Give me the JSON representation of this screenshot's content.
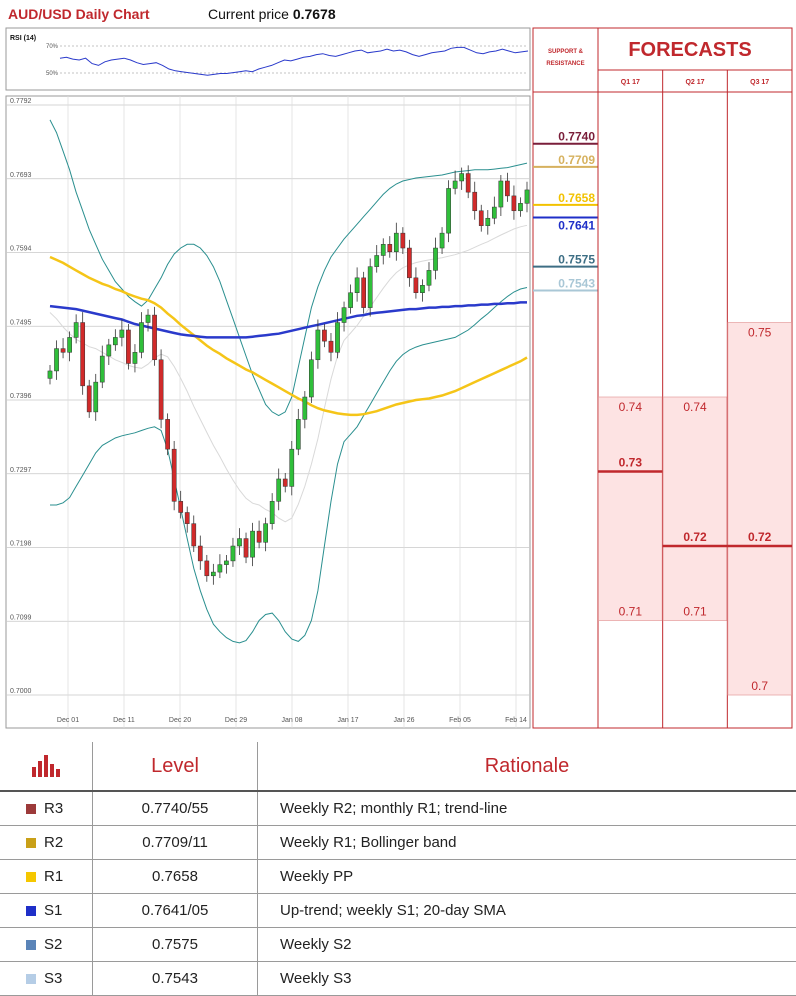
{
  "header": {
    "title": "AUD/USD Daily Chart",
    "price_prefix": "Current price",
    "price_value": "0.7678"
  },
  "rsi": {
    "label": "RSI (14)",
    "ticks": [
      "70%",
      "50%"
    ]
  },
  "support_header": "SUPPORT & RESISTANCE",
  "forecasts": {
    "title": "FORECASTS",
    "columns": [
      "Q1 17",
      "Q2 17",
      "Q3 17"
    ],
    "data": [
      {
        "quarter": "Q1 17",
        "high": 0.74,
        "mid": 0.73,
        "low": 0.71,
        "labels": [
          "0.74",
          "0.73",
          "0.71"
        ]
      },
      {
        "quarter": "Q2 17",
        "high": 0.74,
        "mid": 0.72,
        "low": 0.71,
        "labels": [
          "0.74",
          "0.72",
          "0.71"
        ]
      },
      {
        "quarter": "Q3 17",
        "high": 0.75,
        "mid": 0.72,
        "low": 0.7,
        "labels": [
          "0.75",
          "0.72",
          "0.7"
        ]
      }
    ]
  },
  "colors": {
    "brand_red": "#c0282d",
    "r3": "#7a1e3a",
    "r2": "#d6b15e",
    "r1": "#f2c200",
    "s1": "#1f2fc8",
    "s2": "#3d6e84",
    "s3": "#a9c7d6",
    "candle_up": "#2fbf3a",
    "candle_down": "#d12a2a",
    "bollinger": "#2a8f8f",
    "sma200": "#2a3acb",
    "sma100": "#f5c518",
    "forecast_fill": "#fde3e3"
  },
  "chart_data": {
    "type": "candlestick",
    "y_ticks": [
      "0.7792",
      "0.7693",
      "0.7594",
      "0.7495",
      "0.7396",
      "0.7297",
      "0.7198",
      "0.7099",
      "0.7000"
    ],
    "ylim": [
      0.7,
      0.7792
    ],
    "x_ticks": [
      "Dec 01",
      "Dec 11",
      "Dec 20",
      "Dec 29",
      "Jan 08",
      "Jan 17",
      "Jan 26",
      "Feb 05",
      "Feb 14"
    ],
    "levels": [
      {
        "name": "R3",
        "value": 0.774,
        "label": "0.7740",
        "color": "#7a1e3a"
      },
      {
        "name": "R2",
        "value": 0.7709,
        "label": "0.7709",
        "color": "#d6b15e"
      },
      {
        "name": "R1",
        "value": 0.7658,
        "label": "0.7658",
        "color": "#f2c200"
      },
      {
        "name": "S1",
        "value": 0.7641,
        "label": "0.7641",
        "color": "#1f2fc8"
      },
      {
        "name": "S2",
        "value": 0.7575,
        "label": "0.7575",
        "color": "#3d6e84"
      },
      {
        "name": "S3",
        "value": 0.7543,
        "label": "0.7543",
        "color": "#a9c7d6"
      }
    ],
    "close": [
      0.7435,
      0.7465,
      0.746,
      0.748,
      0.75,
      0.7415,
      0.738,
      0.742,
      0.7455,
      0.747,
      0.748,
      0.749,
      0.7445,
      0.746,
      0.75,
      0.751,
      0.745,
      0.737,
      0.733,
      0.726,
      0.7245,
      0.723,
      0.72,
      0.718,
      0.716,
      0.7165,
      0.7175,
      0.718,
      0.72,
      0.721,
      0.7185,
      0.722,
      0.7205,
      0.723,
      0.726,
      0.729,
      0.728,
      0.733,
      0.737,
      0.74,
      0.745,
      0.749,
      0.7475,
      0.746,
      0.75,
      0.752,
      0.754,
      0.756,
      0.752,
      0.7575,
      0.759,
      0.7605,
      0.7595,
      0.762,
      0.76,
      0.756,
      0.754,
      0.755,
      0.757,
      0.76,
      0.762,
      0.768,
      0.769,
      0.77,
      0.7675,
      0.765,
      0.763,
      0.764,
      0.7655,
      0.769,
      0.767,
      0.765,
      0.766,
      0.7678
    ],
    "sma200": [
      0.7522,
      0.7521,
      0.752,
      0.7519,
      0.7518,
      0.7516,
      0.7514,
      0.7512,
      0.751,
      0.7508,
      0.7506,
      0.7504,
      0.7501,
      0.7498,
      0.7496,
      0.7494,
      0.7492,
      0.749,
      0.7488,
      0.7486,
      0.7484,
      0.7483,
      0.7482,
      0.7481,
      0.748,
      0.748,
      0.748,
      0.748,
      0.748,
      0.748,
      0.748,
      0.7481,
      0.7482,
      0.7483,
      0.7484,
      0.7485,
      0.7487,
      0.7489,
      0.7491,
      0.7493,
      0.7495,
      0.7497,
      0.7499,
      0.7501,
      0.7503,
      0.7505,
      0.7507,
      0.7509,
      0.751,
      0.7512,
      0.7513,
      0.7514,
      0.7515,
      0.7516,
      0.7517,
      0.7518,
      0.7518,
      0.7519,
      0.752,
      0.752,
      0.7521,
      0.7521,
      0.7522,
      0.7522,
      0.7523,
      0.7523,
      0.7524,
      0.7524,
      0.7525,
      0.7525,
      0.7526,
      0.7526,
      0.7527,
      0.7527
    ],
    "sma100": [
      0.7588,
      0.7584,
      0.758,
      0.7575,
      0.757,
      0.7565,
      0.756,
      0.7556,
      0.7552,
      0.7549,
      0.7545,
      0.7542,
      0.7538,
      0.7535,
      0.7532,
      0.753,
      0.7526,
      0.752,
      0.7512,
      0.7505,
      0.7497,
      0.749,
      0.7483,
      0.7476,
      0.7469,
      0.7463,
      0.7458,
      0.7452,
      0.7447,
      0.7442,
      0.7437,
      0.7433,
      0.7428,
      0.7423,
      0.7418,
      0.7413,
      0.7408,
      0.7403,
      0.7398,
      0.7394,
      0.7389,
      0.7385,
      0.7382,
      0.738,
      0.7378,
      0.7377,
      0.7376,
      0.7376,
      0.7377,
      0.7379,
      0.7381,
      0.7384,
      0.7387,
      0.739,
      0.7392,
      0.7394,
      0.7396,
      0.7397,
      0.7398,
      0.74,
      0.7402,
      0.7405,
      0.7408,
      0.7412,
      0.7416,
      0.742,
      0.7424,
      0.7428,
      0.7432,
      0.7436,
      0.744,
      0.7444,
      0.7448,
      0.7453
    ],
    "boll_upper": [
      0.7772,
      0.7755,
      0.773,
      0.7705,
      0.7675,
      0.765,
      0.7625,
      0.7605,
      0.7585,
      0.757,
      0.7555,
      0.7545,
      0.7535,
      0.7528,
      0.7522,
      0.753,
      0.7545,
      0.756,
      0.7578,
      0.7592,
      0.76,
      0.7605,
      0.7605,
      0.76,
      0.759,
      0.7575,
      0.7555,
      0.753,
      0.7505,
      0.748,
      0.7455,
      0.743,
      0.741,
      0.739,
      0.738,
      0.7375,
      0.738,
      0.74,
      0.744,
      0.748,
      0.752,
      0.7548,
      0.757,
      0.7588,
      0.76,
      0.7612,
      0.7622,
      0.7632,
      0.7642,
      0.7652,
      0.7662,
      0.7672,
      0.768,
      0.7686,
      0.769,
      0.7692,
      0.7694,
      0.7695,
      0.7696,
      0.7697,
      0.7698,
      0.77,
      0.7702,
      0.7703,
      0.7704,
      0.7705,
      0.7705,
      0.7705,
      0.7706,
      0.7707,
      0.7708,
      0.771,
      0.7712,
      0.7714
    ],
    "boll_lower": [
      0.7255,
      0.7255,
      0.7258,
      0.7265,
      0.728,
      0.7295,
      0.731,
      0.7325,
      0.7335,
      0.734,
      0.7345,
      0.7348,
      0.735,
      0.7352,
      0.7355,
      0.7358,
      0.736,
      0.7355,
      0.733,
      0.729,
      0.725,
      0.721,
      0.717,
      0.714,
      0.7115,
      0.7095,
      0.7085,
      0.7077,
      0.7072,
      0.707,
      0.7073,
      0.7085,
      0.71,
      0.7108,
      0.711,
      0.71,
      0.7085,
      0.7075,
      0.7072,
      0.708,
      0.71,
      0.714,
      0.72,
      0.726,
      0.731,
      0.734,
      0.735,
      0.736,
      0.7375,
      0.739,
      0.7405,
      0.742,
      0.7435,
      0.7448,
      0.7457,
      0.7463,
      0.7467,
      0.747,
      0.7472,
      0.7474,
      0.7476,
      0.7478,
      0.748,
      0.7485,
      0.749,
      0.7497,
      0.7505,
      0.7512,
      0.752,
      0.7528,
      0.7535,
      0.7541,
      0.7545,
      0.7547
    ],
    "rsi_values": [
      0.62,
      0.63,
      0.61,
      0.6,
      0.62,
      0.56,
      0.54,
      0.58,
      0.6,
      0.61,
      0.62,
      0.6,
      0.57,
      0.55,
      0.56,
      0.57,
      0.54,
      0.5,
      0.48,
      0.47,
      0.46,
      0.45,
      0.44,
      0.43,
      0.44,
      0.45,
      0.45,
      0.46,
      0.47,
      0.48,
      0.47,
      0.5,
      0.52,
      0.54,
      0.57,
      0.6,
      0.59,
      0.61,
      0.63,
      0.64,
      0.66,
      0.67,
      0.65,
      0.64,
      0.66,
      0.68,
      0.7,
      0.71,
      0.68,
      0.69,
      0.7,
      0.72,
      0.7,
      0.71,
      0.69,
      0.66,
      0.64,
      0.66,
      0.68,
      0.69,
      0.7,
      0.73,
      0.74,
      0.74,
      0.71,
      0.68,
      0.67,
      0.69,
      0.7,
      0.72,
      0.7,
      0.68,
      0.69,
      0.7
    ]
  },
  "table": {
    "headers": {
      "level": "Level",
      "rationale": "Rationale"
    },
    "rows": [
      {
        "name": "R3",
        "level": "0.7740/55",
        "rationale": "Weekly R2; monthly R1; trend-line",
        "color": "#9c3a3a"
      },
      {
        "name": "R2",
        "level": "0.7709/11",
        "rationale": "Weekly R1; Bollinger band",
        "color": "#c9a018"
      },
      {
        "name": "R1",
        "level": "0.7658",
        "rationale": "Weekly PP",
        "color": "#f5c700"
      },
      {
        "name": "S1",
        "level": "0.7641/05",
        "rationale": "Up-trend; weekly S1; 20-day SMA",
        "color": "#1f2fc8"
      },
      {
        "name": "S2",
        "level": "0.7575",
        "rationale": "Weekly S2",
        "color": "#5a84b8"
      },
      {
        "name": "S3",
        "level": "0.7543",
        "rationale": "Weekly S3",
        "color": "#b5cde6"
      }
    ]
  }
}
